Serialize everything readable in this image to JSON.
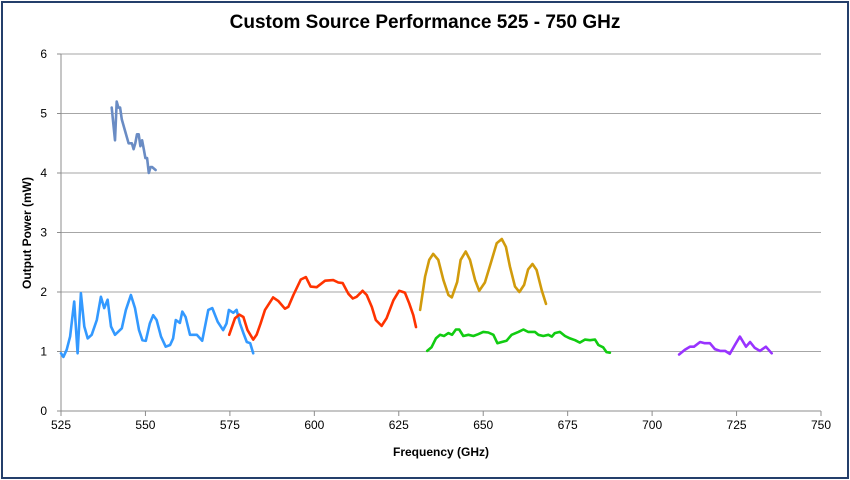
{
  "chart_data": {
    "type": "line",
    "title": "Custom Source Performance 525 - 750 GHz",
    "xlabel": "Frequency (GHz)",
    "ylabel": "Output Power (mW)",
    "xlim": [
      525,
      750
    ],
    "ylim": [
      0,
      6
    ],
    "xticks": [
      525,
      550,
      575,
      600,
      625,
      650,
      675,
      700,
      725,
      750
    ],
    "yticks": [
      0,
      1,
      2,
      3,
      4,
      5,
      6
    ],
    "grid": "horizontal",
    "legend": "none",
    "series": [
      {
        "name": "series-1",
        "color": "#6A8CC4",
        "points": [
          [
            540,
            5.1
          ],
          [
            541,
            4.55
          ],
          [
            541.5,
            5.2
          ],
          [
            542,
            5.1
          ],
          [
            542.5,
            5.1
          ],
          [
            543,
            4.9
          ],
          [
            544,
            4.7
          ],
          [
            545,
            4.5
          ],
          [
            546,
            4.5
          ],
          [
            546.5,
            4.4
          ],
          [
            547,
            4.5
          ],
          [
            547.5,
            4.65
          ],
          [
            548,
            4.65
          ],
          [
            548.5,
            4.45
          ],
          [
            549,
            4.55
          ],
          [
            549.5,
            4.4
          ],
          [
            550,
            4.25
          ],
          [
            550.5,
            4.25
          ],
          [
            551,
            4.0
          ],
          [
            551.5,
            4.1
          ],
          [
            552,
            4.1
          ],
          [
            553,
            4.05
          ]
        ]
      },
      {
        "name": "series-2",
        "color": "#3399FF",
        "points": [
          [
            525,
            0.97
          ],
          [
            525.7,
            0.91
          ],
          [
            526.7,
            1.03
          ],
          [
            527.7,
            1.25
          ],
          [
            528.9,
            1.84
          ],
          [
            529.9,
            0.97
          ],
          [
            530.9,
            1.98
          ],
          [
            531.9,
            1.42
          ],
          [
            532.9,
            1.22
          ],
          [
            534.1,
            1.28
          ],
          [
            535.6,
            1.53
          ],
          [
            536.8,
            1.92
          ],
          [
            537.8,
            1.73
          ],
          [
            538.8,
            1.87
          ],
          [
            539.8,
            1.42
          ],
          [
            541,
            1.28
          ],
          [
            543,
            1.39
          ],
          [
            544.2,
            1.7
          ],
          [
            545.7,
            1.95
          ],
          [
            546.9,
            1.73
          ],
          [
            548.1,
            1.36
          ],
          [
            549.1,
            1.19
          ],
          [
            550.1,
            1.18
          ],
          [
            551.3,
            1.47
          ],
          [
            552.3,
            1.61
          ],
          [
            553.3,
            1.53
          ],
          [
            554.6,
            1.25
          ],
          [
            556,
            1.08
          ],
          [
            557.3,
            1.11
          ],
          [
            558.2,
            1.22
          ],
          [
            559,
            1.53
          ],
          [
            560.2,
            1.48
          ],
          [
            560.9,
            1.67
          ],
          [
            561.9,
            1.58
          ],
          [
            563.2,
            1.28
          ],
          [
            565.2,
            1.28
          ],
          [
            566.8,
            1.18
          ],
          [
            568.6,
            1.7
          ],
          [
            569.8,
            1.73
          ],
          [
            571.4,
            1.5
          ],
          [
            573,
            1.36
          ],
          [
            574,
            1.47
          ],
          [
            574.7,
            1.7
          ],
          [
            576,
            1.65
          ],
          [
            577,
            1.7
          ],
          [
            578,
            1.47
          ],
          [
            579,
            1.31
          ],
          [
            580,
            1.16
          ],
          [
            581,
            1.14
          ],
          [
            581.9,
            0.97
          ]
        ]
      },
      {
        "name": "series-3",
        "color": "#FF3300",
        "points": [
          [
            574.8,
            1.28
          ],
          [
            576.5,
            1.56
          ],
          [
            577.8,
            1.62
          ],
          [
            579,
            1.58
          ],
          [
            580.2,
            1.36
          ],
          [
            581.9,
            1.2
          ],
          [
            582.9,
            1.28
          ],
          [
            584.1,
            1.47
          ],
          [
            585.4,
            1.7
          ],
          [
            587.8,
            1.91
          ],
          [
            589.3,
            1.85
          ],
          [
            591.3,
            1.72
          ],
          [
            592.3,
            1.75
          ],
          [
            593.8,
            1.95
          ],
          [
            596,
            2.21
          ],
          [
            597.5,
            2.25
          ],
          [
            598.9,
            2.09
          ],
          [
            600.7,
            2.08
          ],
          [
            603.2,
            2.19
          ],
          [
            605.6,
            2.2
          ],
          [
            607.1,
            2.16
          ],
          [
            608.4,
            2.15
          ],
          [
            610.1,
            1.97
          ],
          [
            611.4,
            1.89
          ],
          [
            612.5,
            1.92
          ],
          [
            614.3,
            2.02
          ],
          [
            615.5,
            1.95
          ],
          [
            617,
            1.75
          ],
          [
            618.2,
            1.53
          ],
          [
            619.9,
            1.43
          ],
          [
            621.4,
            1.56
          ],
          [
            623.4,
            1.86
          ],
          [
            625.1,
            2.02
          ],
          [
            626.8,
            1.99
          ],
          [
            628.1,
            1.81
          ],
          [
            629.3,
            1.61
          ],
          [
            630.1,
            1.41
          ]
        ]
      },
      {
        "name": "series-4",
        "color": "#D19B0C",
        "points": [
          [
            631.3,
            1.7
          ],
          [
            632.8,
            2.26
          ],
          [
            634,
            2.54
          ],
          [
            635.2,
            2.64
          ],
          [
            636.7,
            2.54
          ],
          [
            638.2,
            2.2
          ],
          [
            639.7,
            1.95
          ],
          [
            640.7,
            1.91
          ],
          [
            642.3,
            2.17
          ],
          [
            643.3,
            2.54
          ],
          [
            644.8,
            2.68
          ],
          [
            646.1,
            2.54
          ],
          [
            647.6,
            2.2
          ],
          [
            648.8,
            2.02
          ],
          [
            650.5,
            2.16
          ],
          [
            652.2,
            2.48
          ],
          [
            654,
            2.82
          ],
          [
            655.5,
            2.89
          ],
          [
            656.7,
            2.76
          ],
          [
            657.9,
            2.43
          ],
          [
            659.4,
            2.09
          ],
          [
            660.7,
            2.0
          ],
          [
            662.1,
            2.12
          ],
          [
            663.3,
            2.38
          ],
          [
            664.6,
            2.47
          ],
          [
            665.8,
            2.37
          ],
          [
            667.3,
            2.03
          ],
          [
            668.6,
            1.8
          ]
        ]
      },
      {
        "name": "series-5",
        "color": "#11CC11",
        "points": [
          [
            633.4,
            1.01
          ],
          [
            634.7,
            1.07
          ],
          [
            636,
            1.22
          ],
          [
            637.2,
            1.28
          ],
          [
            638.4,
            1.26
          ],
          [
            639.7,
            1.31
          ],
          [
            640.8,
            1.28
          ],
          [
            641.9,
            1.37
          ],
          [
            642.9,
            1.37
          ],
          [
            644.1,
            1.26
          ],
          [
            645.6,
            1.28
          ],
          [
            647.1,
            1.26
          ],
          [
            648.5,
            1.29
          ],
          [
            650,
            1.33
          ],
          [
            651.5,
            1.32
          ],
          [
            653,
            1.28
          ],
          [
            654.2,
            1.14
          ],
          [
            655.5,
            1.16
          ],
          [
            656.9,
            1.18
          ],
          [
            658.4,
            1.28
          ],
          [
            660.4,
            1.33
          ],
          [
            661.9,
            1.37
          ],
          [
            663.3,
            1.33
          ],
          [
            665.3,
            1.33
          ],
          [
            666.3,
            1.28
          ],
          [
            667.8,
            1.26
          ],
          [
            669.3,
            1.28
          ],
          [
            670.3,
            1.25
          ],
          [
            671.2,
            1.31
          ],
          [
            672.7,
            1.33
          ],
          [
            674.2,
            1.26
          ],
          [
            675.7,
            1.22
          ],
          [
            677.2,
            1.19
          ],
          [
            678.6,
            1.15
          ],
          [
            680.1,
            1.2
          ],
          [
            681.6,
            1.19
          ],
          [
            683.1,
            1.2
          ],
          [
            684.1,
            1.11
          ],
          [
            685.5,
            1.07
          ],
          [
            686.5,
            0.99
          ],
          [
            687.5,
            0.98
          ]
        ]
      },
      {
        "name": "series-6",
        "color": "#9933FF",
        "points": [
          [
            708,
            0.95
          ],
          [
            709.7,
            1.03
          ],
          [
            711.2,
            1.08
          ],
          [
            712.4,
            1.08
          ],
          [
            714.2,
            1.16
          ],
          [
            715.6,
            1.14
          ],
          [
            717.1,
            1.14
          ],
          [
            718.6,
            1.04
          ],
          [
            720.1,
            1.01
          ],
          [
            721.6,
            1.01
          ],
          [
            723,
            0.96
          ],
          [
            724.5,
            1.11
          ],
          [
            726,
            1.25
          ],
          [
            727.8,
            1.08
          ],
          [
            729,
            1.16
          ],
          [
            730.4,
            1.06
          ],
          [
            731.9,
            1.01
          ],
          [
            733.7,
            1.08
          ],
          [
            735.4,
            0.97
          ]
        ]
      }
    ]
  }
}
